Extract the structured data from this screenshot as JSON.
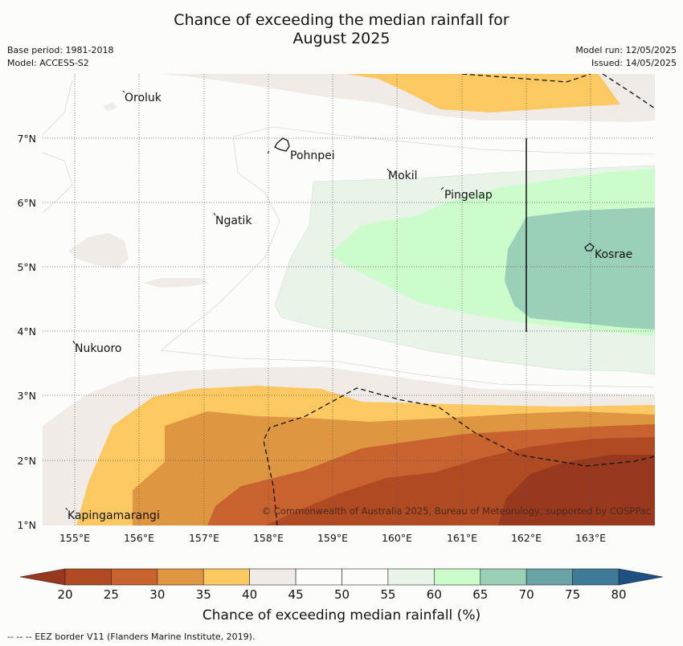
{
  "header": {
    "title_line1": "Chance of exceeding the median rainfall for",
    "title_line2": "August 2025",
    "base_period": "Base period: 1981-2018",
    "model": "Model: ACCESS-S2",
    "model_run": "Model run: 12/05/2025",
    "issued": "Issued: 14/05/2025"
  },
  "map": {
    "lon_ticks": [
      "155°E",
      "156°E",
      "157°E",
      "158°E",
      "159°E",
      "160°E",
      "161°E",
      "162°E",
      "163°E"
    ],
    "lat_ticks": [
      "7°N",
      "6°N",
      "5°N",
      "4°N",
      "3°N",
      "2°N",
      "1°N"
    ],
    "places": [
      "Oroluk",
      "Pohnpei",
      "Mokil",
      "Pingelap",
      "Ngatik",
      "Kosrae",
      "Nukuoro",
      "Kapingamarangi"
    ],
    "credit": "© Commonwealth of Australia 2025, Bureau of Meteorology, supported by COSPPac"
  },
  "colorbar": {
    "ticks": [
      "20",
      "25",
      "30",
      "35",
      "40",
      "45",
      "50",
      "55",
      "60",
      "65",
      "70",
      "75",
      "80"
    ],
    "colors": [
      "#b04a22",
      "#c8622f",
      "#df9641",
      "#fcc862",
      "#f0ebe6",
      "#fcfdfb",
      "#fcfdfb",
      "#e9f4e8",
      "#ccfccc",
      "#9acfb8",
      "#6aa3a5",
      "#3f7a98"
    ],
    "under_color": "#98391f",
    "over_color": "#1e5182",
    "label": "Chance of exceeding median rainfall (%)"
  },
  "footnote": "--  --  -- EEZ border V11 (Flanders Marine Institute, 2019)."
}
